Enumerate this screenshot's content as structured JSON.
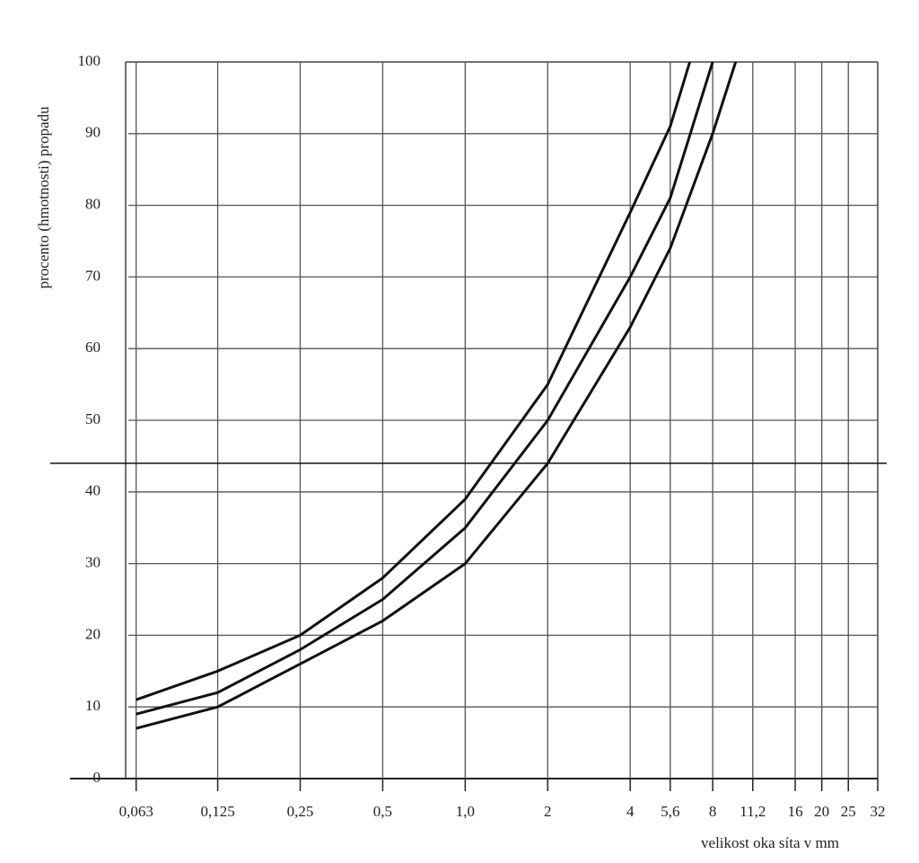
{
  "chart_data": {
    "type": "line",
    "x_label": "velikost oka síta v mm",
    "y_label": "procento (hmotnosti) propadu",
    "xlog": true,
    "xlim": [
      0.059,
      32
    ],
    "xticks": [
      {
        "value": 0.063,
        "label": "0,063"
      },
      {
        "value": 0.125,
        "label": "0,125"
      },
      {
        "value": 0.25,
        "label": "0,25"
      },
      {
        "value": 0.5,
        "label": "0,5"
      },
      {
        "value": 1.0,
        "label": "1,0"
      },
      2,
      4,
      {
        "value": 5.6,
        "label": "5,6"
      },
      8,
      {
        "value": 11.2,
        "label": "11,2"
      },
      16,
      20,
      25,
      32
    ],
    "ylim": [
      0,
      100
    ],
    "yticks": [
      0,
      10,
      20,
      30,
      40,
      50,
      60,
      70,
      80,
      90,
      100
    ],
    "grid": true,
    "hline": 44,
    "series": [
      {
        "color": "#111111",
        "x": [
          0.063,
          0.125,
          0.25,
          0.5,
          1.0,
          2,
          4,
          5.6,
          6.6
        ],
        "values": [
          11,
          15,
          20,
          28,
          39,
          55,
          79,
          91,
          100
        ]
      },
      {
        "color": "#111111",
        "x": [
          0.063,
          0.125,
          0.25,
          0.5,
          1.0,
          2,
          4,
          5.6,
          8
        ],
        "values": [
          9,
          12,
          18,
          25,
          35,
          50,
          70,
          81,
          100
        ]
      },
      {
        "color": "#111111",
        "x": [
          0.063,
          0.125,
          0.25,
          0.5,
          1.0,
          2,
          4,
          5.6,
          8,
          9.7
        ],
        "values": [
          7,
          10,
          16,
          22,
          30,
          44,
          63,
          74,
          90,
          100
        ]
      }
    ]
  }
}
